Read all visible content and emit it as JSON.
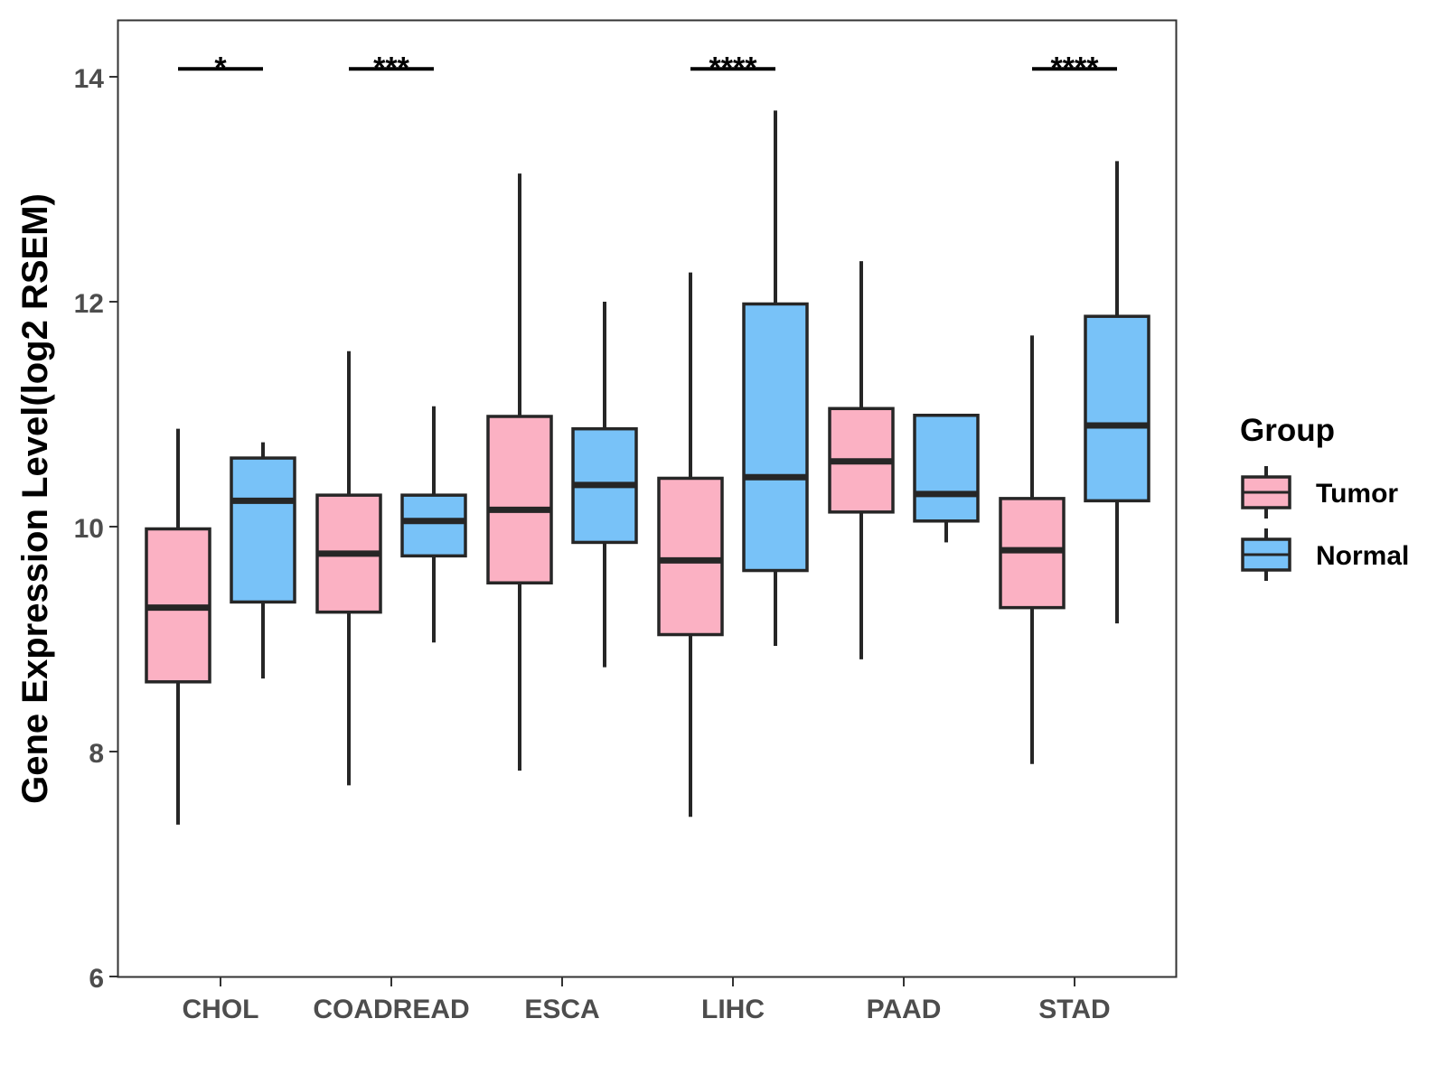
{
  "chart_data": {
    "type": "boxplot",
    "title": "",
    "xlabel": "",
    "ylabel": "Gene Expression Level(log2 RSEM)",
    "ylim": [
      6,
      14.5
    ],
    "yticks": [
      6,
      8,
      10,
      12,
      14
    ],
    "ytick_labels": [
      "6",
      "8",
      "10",
      "12",
      "14"
    ],
    "grid": false,
    "categories": [
      "CHOL",
      "COADREAD",
      "ESCA",
      "LIHC",
      "PAAD",
      "STAD"
    ],
    "series": [
      {
        "name": "Tumor",
        "color": "#FBB1C3",
        "boxes": [
          {
            "min": 7.35,
            "q1": 8.62,
            "median": 9.28,
            "q3": 9.98,
            "max": 10.87
          },
          {
            "min": 7.7,
            "q1": 9.24,
            "median": 9.76,
            "q3": 10.28,
            "max": 11.56
          },
          {
            "min": 7.83,
            "q1": 9.5,
            "median": 10.15,
            "q3": 10.98,
            "max": 13.14
          },
          {
            "min": 7.42,
            "q1": 9.04,
            "median": 9.7,
            "q3": 10.43,
            "max": 12.26
          },
          {
            "min": 8.82,
            "q1": 10.13,
            "median": 10.58,
            "q3": 11.05,
            "max": 12.36
          },
          {
            "min": 7.89,
            "q1": 9.28,
            "median": 9.79,
            "q3": 10.25,
            "max": 11.7
          }
        ]
      },
      {
        "name": "Normal",
        "color": "#78C2F8",
        "boxes": [
          {
            "min": 8.65,
            "q1": 9.33,
            "median": 10.23,
            "q3": 10.61,
            "max": 10.75
          },
          {
            "min": 8.97,
            "q1": 9.74,
            "median": 10.05,
            "q3": 10.28,
            "max": 11.07
          },
          {
            "min": 8.75,
            "q1": 9.86,
            "median": 10.37,
            "q3": 10.87,
            "max": 12.0
          },
          {
            "min": 8.94,
            "q1": 9.61,
            "median": 10.44,
            "q3": 11.98,
            "max": 13.7
          },
          {
            "min": 9.86,
            "q1": 10.05,
            "median": 10.29,
            "q3": 10.99,
            "max": 10.99
          },
          {
            "min": 9.14,
            "q1": 10.23,
            "median": 10.9,
            "q3": 11.87,
            "max": 13.25
          }
        ]
      }
    ],
    "significance": [
      {
        "category": "CHOL",
        "label": "*"
      },
      {
        "category": "COADREAD",
        "label": "***"
      },
      {
        "category": "LIHC",
        "label": "****"
      },
      {
        "category": "STAD",
        "label": "****"
      }
    ],
    "significance_level": 14.07,
    "legend": {
      "title": "Group",
      "position": "right",
      "entries": [
        "Tumor",
        "Normal"
      ]
    }
  }
}
